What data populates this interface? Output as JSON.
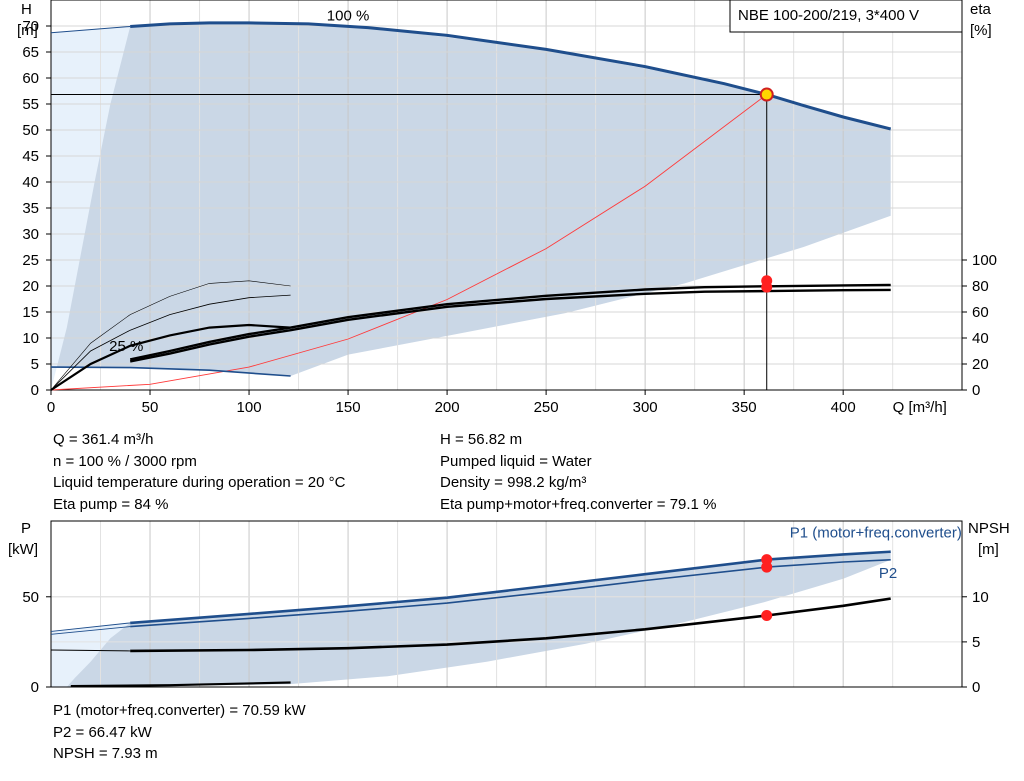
{
  "colors": {
    "curve_blue": "#1f4e8c",
    "envelope_fill": "#cad7e6",
    "low_flow_fill": "#e7f1fb",
    "efficiency_line": "#ff3b3b",
    "duty_point": "#ff2020",
    "duty_point_top": "#ffd600"
  },
  "chart_data": [
    {
      "type": "line",
      "name": "head-chart",
      "header_box": "NBE 100-200/219, 3*400 V",
      "ylabel_left": [
        "H",
        "[m]"
      ],
      "ylabel_right": [
        "eta",
        "[%]"
      ],
      "xlabel": "Q [m³/h]",
      "x_ticks": [
        0,
        50,
        100,
        150,
        200,
        250,
        300,
        350,
        400
      ],
      "y_ticks": [
        0,
        5,
        10,
        15,
        20,
        25,
        30,
        35,
        40,
        45,
        50,
        55,
        60,
        65,
        70
      ],
      "eta_ticks": [
        0,
        20,
        40,
        60,
        80,
        100
      ],
      "xlim": [
        0,
        460
      ],
      "ylim": [
        0,
        75
      ],
      "eta_range": [
        0,
        100
      ],
      "eta_origin_head": 0,
      "eta_100_head": 25,
      "grid": true,
      "curve_labels": [
        "100 %",
        "25 %"
      ],
      "duty_point": {
        "Q": 361.4,
        "H": 56.82
      },
      "head_100": [
        [
          40,
          69.9
        ],
        [
          60,
          70.4
        ],
        [
          80,
          70.6
        ],
        [
          100,
          70.6
        ],
        [
          130,
          70.4
        ],
        [
          160,
          69.7
        ],
        [
          200,
          68.2
        ],
        [
          250,
          65.5
        ],
        [
          300,
          62.2
        ],
        [
          340,
          58.9
        ],
        [
          361.4,
          56.82
        ],
        [
          380,
          54.7
        ],
        [
          400,
          52.5
        ],
        [
          424,
          50.2
        ]
      ],
      "head_100_low_flow": [
        [
          0,
          68.7
        ],
        [
          40,
          69.9
        ]
      ],
      "head_25": [
        [
          0,
          4.4
        ],
        [
          40,
          4.3
        ],
        [
          80,
          3.8
        ],
        [
          121,
          2.7
        ]
      ],
      "envelope_upper": [
        [
          0,
          68.7
        ],
        [
          40,
          69.9
        ],
        [
          100,
          70.6
        ],
        [
          160,
          69.7
        ],
        [
          250,
          65.5
        ],
        [
          340,
          58.9
        ],
        [
          400,
          52.5
        ],
        [
          424,
          50.2
        ],
        [
          424,
          33.5
        ]
      ],
      "envelope_lower": [
        [
          424,
          33.5
        ],
        [
          380,
          27.5
        ],
        [
          320,
          20.5
        ],
        [
          260,
          14.8
        ],
        [
          200,
          10.4
        ],
        [
          150,
          6.8
        ],
        [
          121,
          2.7
        ],
        [
          80,
          3.8
        ],
        [
          40,
          4.3
        ],
        [
          0,
          4.4
        ]
      ],
      "low_flow_boundary": [
        [
          0,
          68.7
        ],
        [
          40,
          69.9
        ],
        [
          30,
          55
        ],
        [
          22,
          40
        ],
        [
          15,
          26
        ],
        [
          8,
          12
        ],
        [
          0,
          0
        ]
      ],
      "system_curve": [
        [
          0,
          0
        ],
        [
          50,
          1.1
        ],
        [
          100,
          4.4
        ],
        [
          150,
          9.8
        ],
        [
          200,
          17.4
        ],
        [
          250,
          27.2
        ],
        [
          300,
          39.2
        ],
        [
          361.4,
          56.82
        ]
      ],
      "eta_curves": [
        {
          "points": [
            [
              0,
              0
            ],
            [
              20,
              30
            ],
            [
              40,
              46
            ],
            [
              60,
              58
            ],
            [
              80,
              66
            ],
            [
              100,
              71
            ],
            [
              121,
              73
            ]
          ],
          "width": 0.8
        },
        {
          "points": [
            [
              0,
              0
            ],
            [
              20,
              20
            ],
            [
              40,
              34
            ],
            [
              60,
              42
            ],
            [
              80,
              48
            ],
            [
              100,
              50
            ],
            [
              121,
              48
            ]
          ],
          "width": 2.2
        },
        {
          "points": [
            [
              40,
              22
            ],
            [
              60,
              28
            ],
            [
              80,
              35
            ],
            [
              100,
              41
            ],
            [
              121,
              46
            ],
            [
              150,
              54
            ],
            [
              200,
              64
            ],
            [
              250,
              70
            ],
            [
              300,
              74
            ],
            [
              330,
              75.6
            ],
            [
              361.4,
              76.1
            ],
            [
              400,
              76.8
            ],
            [
              424,
              77
            ]
          ],
          "width": 2.4
        },
        {
          "points": [
            [
              40,
              23.5
            ],
            [
              60,
              30
            ],
            [
              80,
              37
            ],
            [
              100,
              43
            ],
            [
              121,
              48
            ],
            [
              150,
              56
            ],
            [
              200,
              66
            ],
            [
              250,
              72.5
            ],
            [
              300,
              77.3
            ],
            [
              330,
              79.1
            ],
            [
              361.4,
              79.8
            ],
            [
              400,
              80.5
            ],
            [
              424,
              80.8
            ]
          ],
          "width": 2.4
        },
        {
          "points": [
            [
              0,
              0
            ],
            [
              20,
              36
            ],
            [
              40,
              58
            ],
            [
              60,
              72
            ],
            [
              80,
              82
            ],
            [
              100,
              84
            ],
            [
              121,
              80
            ]
          ],
          "width": 0.6
        }
      ],
      "eta_duty_points": [
        79.1,
        84
      ]
    },
    {
      "type": "line",
      "name": "power-npsh-chart",
      "ylabel_left": [
        "P",
        "[kW]"
      ],
      "ylabel_right": [
        "NPSH",
        "[m]"
      ],
      "y_ticks": [
        0,
        50
      ],
      "npsh_ticks": [
        0,
        5,
        10
      ],
      "xlim": [
        0,
        460
      ],
      "ylim": [
        0,
        92
      ],
      "npsh_range": [
        0,
        10
      ],
      "npsh_10_power": 50,
      "grid": true,
      "series": [
        {
          "name": "P1 (motor+freq.converter)",
          "label": "P1 (motor+freq.converter)",
          "points": [
            [
              0,
              30.8
            ],
            [
              40,
              35.5
            ],
            [
              100,
              40.5
            ],
            [
              150,
              44.8
            ],
            [
              200,
              49.5
            ],
            [
              250,
              56
            ],
            [
              300,
              62.5
            ],
            [
              361.4,
              70.59
            ],
            [
              400,
              73.5
            ],
            [
              424,
              75
            ]
          ],
          "width": 2.6
        },
        {
          "name": "P2",
          "label": "P2",
          "points": [
            [
              0,
              29.2
            ],
            [
              40,
              33.5
            ],
            [
              100,
              38
            ],
            [
              150,
              42
            ],
            [
              200,
              46.5
            ],
            [
              250,
              52.5
            ],
            [
              300,
              59
            ],
            [
              361.4,
              66.47
            ],
            [
              400,
              69.3
            ],
            [
              424,
              70.5
            ]
          ],
          "width": 1.6
        }
      ],
      "npsh": [
        [
          40,
          4.0
        ],
        [
          100,
          4.1
        ],
        [
          150,
          4.3
        ],
        [
          200,
          4.7
        ],
        [
          250,
          5.4
        ],
        [
          300,
          6.4
        ],
        [
          361.4,
          7.93
        ],
        [
          400,
          9.0
        ],
        [
          424,
          9.8
        ]
      ],
      "npsh_low_flow": [
        [
          0,
          4.1
        ],
        [
          40,
          4.0
        ]
      ],
      "npsh_25": [
        [
          10,
          0.1
        ],
        [
          60,
          0.2
        ],
        [
          121,
          0.5
        ]
      ],
      "envelope_upper": [
        [
          0,
          30.8
        ],
        [
          40,
          35.5
        ],
        [
          150,
          44.8
        ],
        [
          250,
          56
        ],
        [
          361.4,
          70.59
        ],
        [
          424,
          75
        ],
        [
          424,
          70.5
        ]
      ],
      "envelope_lower": [
        [
          424,
          70.5
        ],
        [
          400,
          60
        ],
        [
          360,
          47
        ],
        [
          320,
          36
        ],
        [
          270,
          24
        ],
        [
          220,
          14
        ],
        [
          170,
          6
        ],
        [
          120,
          1.5
        ],
        [
          10,
          0
        ],
        [
          0,
          0
        ]
      ],
      "low_flow_boundary": [
        [
          0,
          30.8
        ],
        [
          40,
          35.5
        ],
        [
          30,
          27
        ],
        [
          20,
          14
        ],
        [
          12,
          5
        ],
        [
          8,
          0
        ],
        [
          0,
          0
        ]
      ],
      "duty_points": [
        70.59,
        66.47
      ],
      "npsh_duty": 7.93
    }
  ],
  "info": {
    "left": [
      "Q = 361.4 m³/h",
      "n = 100 % / 3000 rpm",
      "Liquid temperature during operation = 20 °C",
      "Eta pump = 84 %"
    ],
    "right": [
      "H = 56.82 m",
      "Pumped liquid = Water",
      "Density = 998.2 kg/m³",
      "Eta pump+motor+freq.converter = 79.1 %"
    ],
    "bottom": [
      "P1 (motor+freq.converter) = 70.59 kW",
      "P2 = 66.47 kW",
      "NPSH = 7.93 m"
    ]
  }
}
